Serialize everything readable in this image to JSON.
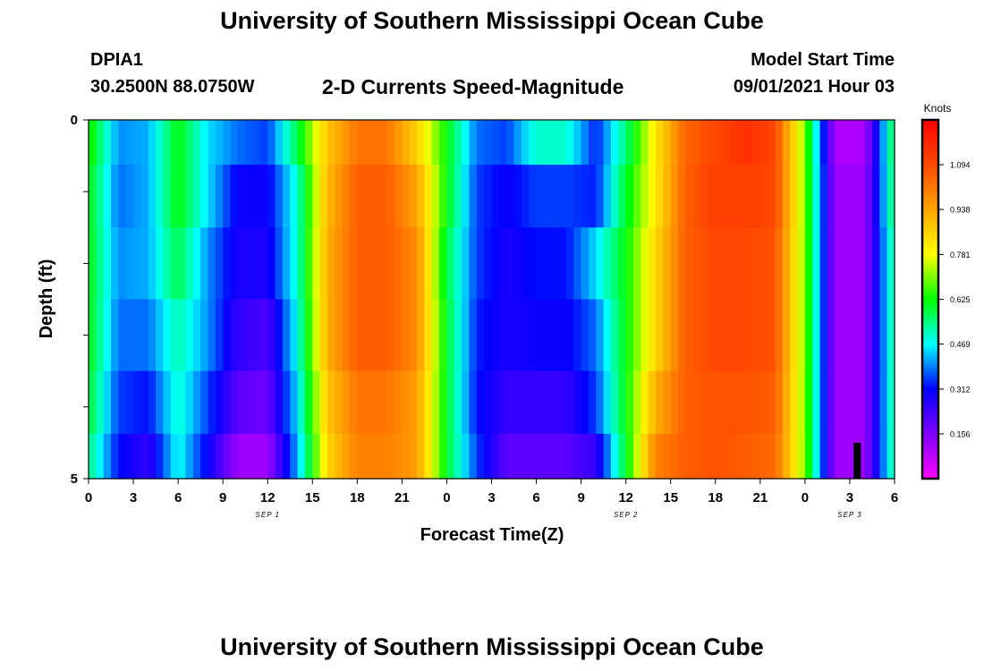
{
  "header": {
    "title": "University of Southern Mississippi Ocean Cube",
    "station_id": "DPIA1",
    "coords": "30.2500N  88.0750W",
    "model_start_label": "Model Start Time",
    "model_start_value": "09/01/2021 Hour 03"
  },
  "footer": {
    "title": "University of Southern Mississippi Ocean Cube"
  },
  "chart_data": {
    "type": "heatmap",
    "title": "2-D Currents Speed-Magnitude",
    "xlabel": "Forecast Time(Z)",
    "ylabel": "Depth (ft)",
    "colorbar_label": "Knots",
    "colorbar_ticks": [
      "0.156",
      "0.312",
      "0.469",
      "0.625",
      "0.781",
      "0.938",
      "1.094"
    ],
    "colorbar_range": [
      0.0,
      1.25
    ],
    "x_tick_labels": [
      "0",
      "3",
      "6",
      "9",
      "12",
      "15",
      "18",
      "21",
      "0",
      "3",
      "6",
      "9",
      "12",
      "15",
      "18",
      "21",
      "0",
      "3",
      "6"
    ],
    "date_labels": [
      {
        "text": "SEP 1",
        "hour": 12
      },
      {
        "text": "SEP 2",
        "hour": 36
      },
      {
        "text": "SEP 3",
        "hour": 51
      }
    ],
    "x_range_hours": [
      0,
      54
    ],
    "y_tick_labels": [
      "0",
      "5"
    ],
    "ylim": [
      0,
      5
    ],
    "depth_rows": [
      0.25,
      1.0,
      2.0,
      3.0,
      4.0,
      4.75
    ],
    "marker": {
      "hour": 51.5,
      "depth_from": 4.5,
      "depth_to": 5,
      "color": "#000000"
    },
    "hours": [
      0,
      2,
      4,
      6,
      8,
      10,
      12,
      14,
      16,
      18,
      20,
      22,
      24,
      26,
      28,
      30,
      32,
      34,
      36,
      38,
      40,
      42,
      44,
      46,
      48,
      50,
      52,
      54
    ],
    "series": [
      {
        "values": [
          0.65,
          0.4,
          0.42,
          0.62,
          0.45,
          0.38,
          0.35,
          0.58,
          0.88,
          1.02,
          1.02,
          0.86,
          0.62,
          0.38,
          0.35,
          0.5,
          0.5,
          0.33,
          0.55,
          0.82,
          1.05,
          1.1,
          1.15,
          1.1,
          0.7,
          0.1,
          0.1,
          0.6
        ]
      },
      {
        "values": [
          0.62,
          0.38,
          0.42,
          0.62,
          0.45,
          0.3,
          0.3,
          0.5,
          0.9,
          1.06,
          1.06,
          0.94,
          0.62,
          0.35,
          0.3,
          0.35,
          0.35,
          0.33,
          0.6,
          0.82,
          1.06,
          1.12,
          1.12,
          1.1,
          0.7,
          0.12,
          0.12,
          0.58
        ]
      },
      {
        "values": [
          0.62,
          0.4,
          0.42,
          0.58,
          0.4,
          0.28,
          0.28,
          0.5,
          0.92,
          1.06,
          1.06,
          0.98,
          0.58,
          0.35,
          0.28,
          0.32,
          0.32,
          0.45,
          0.62,
          0.85,
          1.06,
          1.1,
          1.1,
          1.08,
          0.7,
          0.12,
          0.12,
          0.55
        ]
      },
      {
        "values": [
          0.62,
          0.38,
          0.38,
          0.52,
          0.4,
          0.25,
          0.22,
          0.48,
          0.92,
          1.06,
          1.06,
          0.98,
          0.6,
          0.33,
          0.28,
          0.3,
          0.3,
          0.38,
          0.62,
          0.85,
          1.06,
          1.1,
          1.1,
          1.08,
          0.7,
          0.12,
          0.12,
          0.55
        ]
      },
      {
        "values": [
          0.6,
          0.35,
          0.32,
          0.5,
          0.35,
          0.2,
          0.18,
          0.45,
          0.88,
          1.02,
          1.02,
          0.95,
          0.6,
          0.32,
          0.25,
          0.25,
          0.25,
          0.35,
          0.62,
          0.92,
          1.06,
          1.08,
          1.08,
          1.06,
          0.7,
          0.12,
          0.12,
          0.55
        ]
      },
      {
        "values": [
          0.55,
          0.32,
          0.25,
          0.48,
          0.3,
          0.12,
          0.12,
          0.42,
          0.85,
          1.0,
          1.0,
          0.95,
          0.6,
          0.35,
          0.2,
          0.2,
          0.2,
          0.25,
          0.6,
          1.0,
          1.06,
          1.08,
          1.06,
          1.04,
          0.7,
          0.12,
          0.12,
          0.55
        ]
      }
    ]
  }
}
